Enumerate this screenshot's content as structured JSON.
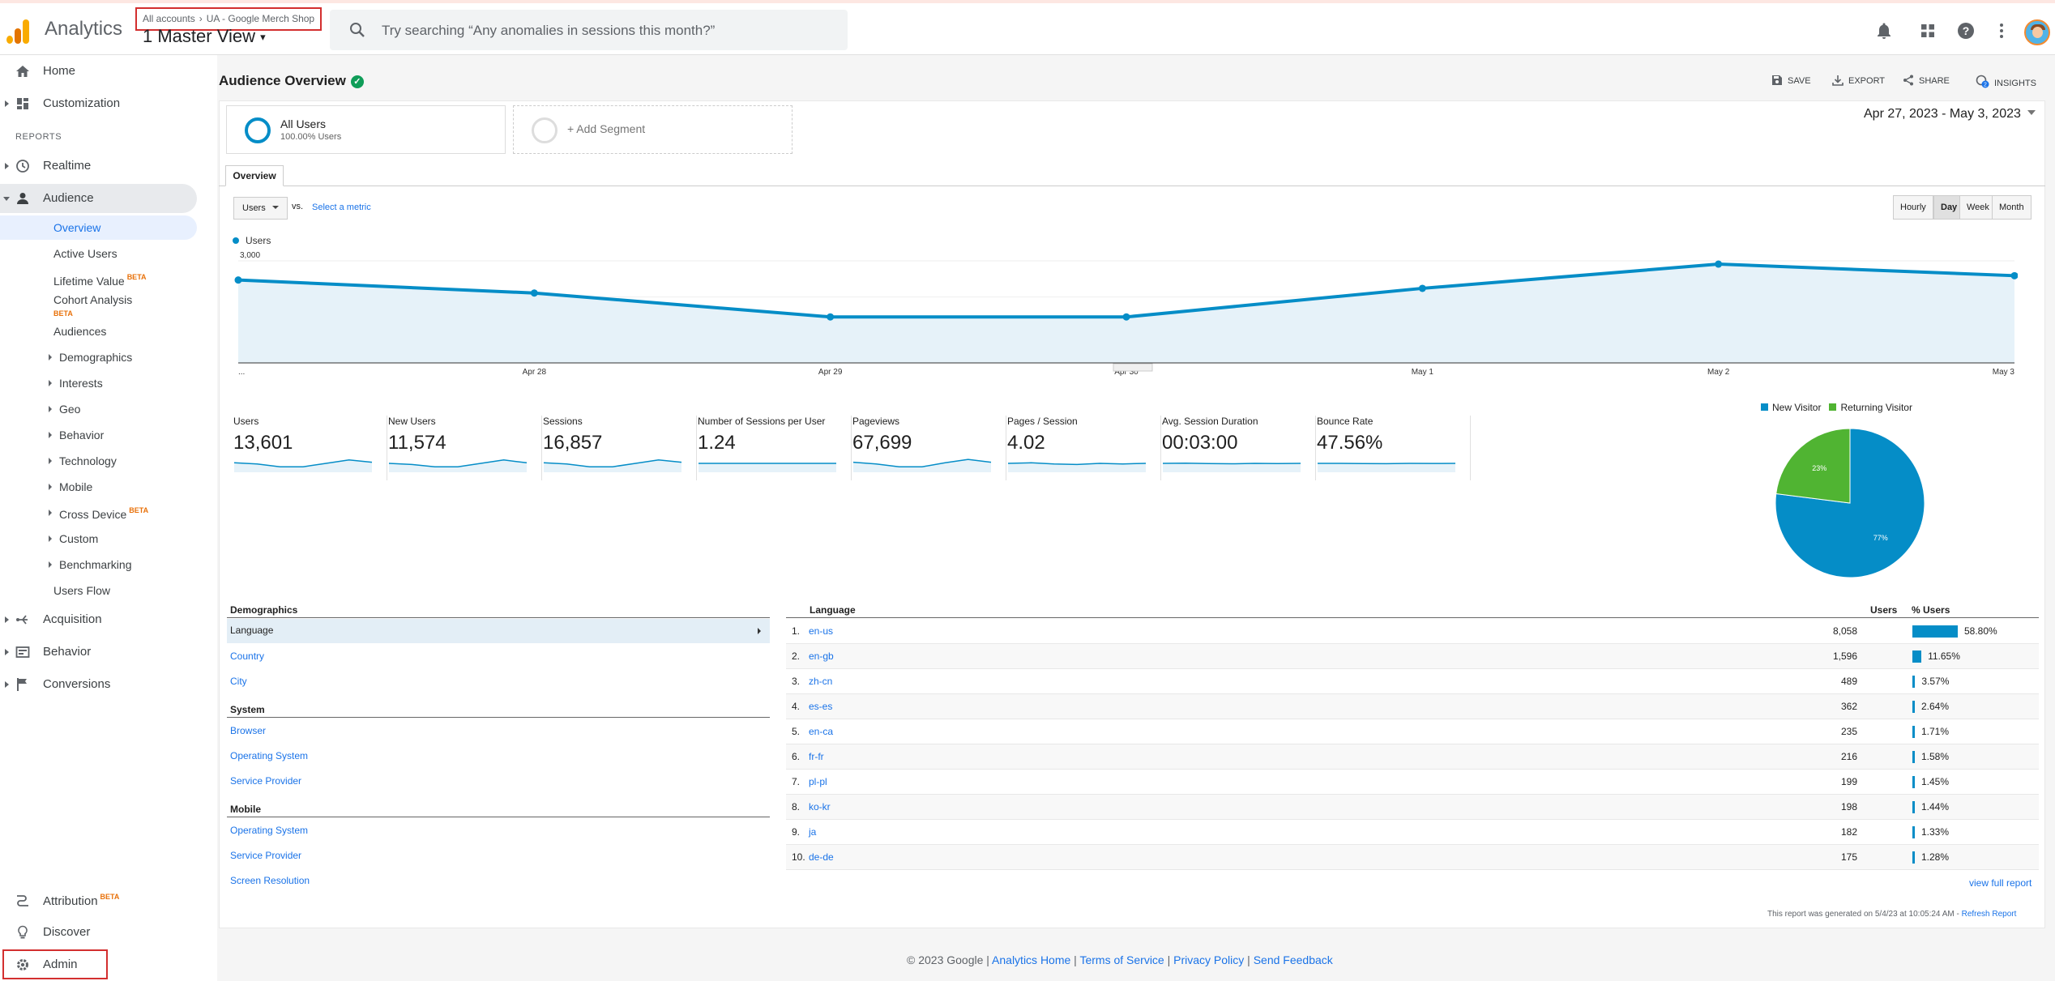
{
  "app": {
    "title": "Analytics"
  },
  "account": {
    "breadcrumb_root": "All accounts",
    "breadcrumb_property": "UA - Google Merch Shop",
    "view": "1 Master View"
  },
  "search": {
    "placeholder": "Try searching “Any anomalies in sessions this month?”"
  },
  "sidebar": {
    "home": "Home",
    "customization": "Customization",
    "reports_header": "REPORTS",
    "realtime": "Realtime",
    "audience": "Audience",
    "audience_items": [
      "Overview",
      "Active Users",
      "Lifetime Value",
      "Cohort Analysis",
      "Audiences",
      "Demographics",
      "Interests",
      "Geo",
      "Behavior",
      "Technology",
      "Mobile",
      "Cross Device",
      "Custom",
      "Benchmarking",
      "Users Flow"
    ],
    "beta": "BETA",
    "acquisition": "Acquisition",
    "behavior": "Behavior",
    "conversions": "Conversions",
    "attribution": "Attribution",
    "discover": "Discover",
    "admin": "Admin"
  },
  "page": {
    "title": "Audience Overview",
    "actions": [
      "SAVE",
      "EXPORT",
      "SHARE",
      "INSIGHTS"
    ],
    "insights_badge": "2",
    "segment_name": "All Users",
    "segment_sub": "100.00% Users",
    "add_segment": "+ Add Segment",
    "date_range": "Apr 27, 2023 - May 3, 2023",
    "tab": "Overview",
    "metric_select": "Users",
    "vs": "vs.",
    "select_metric": "Select a metric",
    "granularity": [
      "Hourly",
      "Day",
      "Week",
      "Month"
    ],
    "granularity_selected": "Day"
  },
  "chart_data": {
    "type": "area",
    "series": [
      {
        "name": "Users",
        "values": [
          2470,
          2110,
          1450,
          1450,
          2240,
          2910,
          2590
        ]
      }
    ],
    "x": [
      "...",
      "Apr 28",
      "Apr 29",
      "Apr 30",
      "May 1",
      "May 2",
      "May 3"
    ],
    "y_ticks": [
      "3,000",
      "2,000",
      "1,000"
    ],
    "ylim": [
      0,
      3000
    ],
    "color": "#058dc7",
    "fill": "#e6f2f9"
  },
  "scorecards": [
    {
      "label": "Users",
      "value": "13,601"
    },
    {
      "label": "New Users",
      "value": "11,574"
    },
    {
      "label": "Sessions",
      "value": "16,857"
    },
    {
      "label": "Number of Sessions per User",
      "value": "1.24"
    },
    {
      "label": "Pageviews",
      "value": "67,699"
    },
    {
      "label": "Pages / Session",
      "value": "4.02"
    },
    {
      "label": "Avg. Session Duration",
      "value": "00:03:00"
    },
    {
      "label": "Bounce Rate",
      "value": "47.56%"
    }
  ],
  "pie": {
    "legend": [
      "New Visitor",
      "Returning Visitor"
    ],
    "colors": [
      "#058dc7",
      "#50b432"
    ],
    "values": [
      77,
      23
    ],
    "labels": [
      "77%",
      "23%"
    ]
  },
  "demographics": {
    "heading": "Demographics",
    "language": "Language",
    "country": "Country",
    "city": "City",
    "system_heading": "System",
    "browser": "Browser",
    "os": "Operating System",
    "sp": "Service Provider",
    "mobile_heading": "Mobile",
    "m_os": "Operating System",
    "m_sp": "Service Provider",
    "m_sr": "Screen Resolution"
  },
  "language_table": {
    "col_language": "Language",
    "col_users": "Users",
    "col_pct": "% Users",
    "rows": [
      {
        "n": "1.",
        "lang": "en-us",
        "users": "8,058",
        "pct": "58.80%",
        "v": 58.8
      },
      {
        "n": "2.",
        "lang": "en-gb",
        "users": "1,596",
        "pct": "11.65%",
        "v": 11.65
      },
      {
        "n": "3.",
        "lang": "zh-cn",
        "users": "489",
        "pct": "3.57%",
        "v": 3.57
      },
      {
        "n": "4.",
        "lang": "es-es",
        "users": "362",
        "pct": "2.64%",
        "v": 2.64
      },
      {
        "n": "5.",
        "lang": "en-ca",
        "users": "235",
        "pct": "1.71%",
        "v": 1.71
      },
      {
        "n": "6.",
        "lang": "fr-fr",
        "users": "216",
        "pct": "1.58%",
        "v": 1.58
      },
      {
        "n": "7.",
        "lang": "pl-pl",
        "users": "199",
        "pct": "1.45%",
        "v": 1.45
      },
      {
        "n": "8.",
        "lang": "ko-kr",
        "users": "198",
        "pct": "1.44%",
        "v": 1.44
      },
      {
        "n": "9.",
        "lang": "ja",
        "users": "182",
        "pct": "1.33%",
        "v": 1.33
      },
      {
        "n": "10.",
        "lang": "de-de",
        "users": "175",
        "pct": "1.28%",
        "v": 1.28
      }
    ],
    "view_full": "view full report",
    "generated": "This report was generated on 5/4/23 at 10:05:24 AM - ",
    "refresh": "Refresh Report"
  },
  "footer": {
    "copyright": "© 2023 Google | ",
    "links": [
      "Analytics Home",
      "Terms of Service",
      "Privacy Policy",
      "Send Feedback"
    ],
    "sep": " | "
  }
}
